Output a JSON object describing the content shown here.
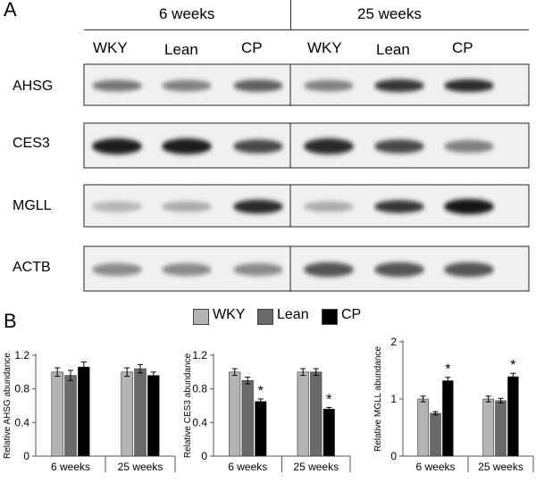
{
  "panel_a": {
    "letter": "A",
    "time_groups": [
      "6 weeks",
      "25 weeks"
    ],
    "lanes": [
      "WKY",
      "Lean",
      "CP",
      "WKY",
      "Lean",
      "CP"
    ],
    "blots": [
      {
        "protein": "AHSG",
        "intensity": [
          0.55,
          0.5,
          0.65,
          0.5,
          0.85,
          0.9
        ],
        "thickness": [
          0.5,
          0.5,
          0.55,
          0.5,
          0.6,
          0.6
        ]
      },
      {
        "protein": "CES3",
        "intensity": [
          0.95,
          0.95,
          0.75,
          0.9,
          0.75,
          0.5
        ],
        "thickness": [
          0.85,
          0.85,
          0.7,
          0.85,
          0.7,
          0.6
        ]
      },
      {
        "protein": "MGLL",
        "intensity": [
          0.25,
          0.3,
          0.9,
          0.3,
          0.85,
          1.0
        ],
        "thickness": [
          0.45,
          0.45,
          0.7,
          0.45,
          0.6,
          0.8
        ]
      },
      {
        "protein": "ACTB",
        "intensity": [
          0.45,
          0.45,
          0.45,
          0.7,
          0.7,
          0.7
        ],
        "thickness": [
          0.6,
          0.6,
          0.6,
          0.75,
          0.75,
          0.75
        ]
      }
    ]
  },
  "panel_b": {
    "letter": "B",
    "legend": [
      {
        "label": "WKY",
        "color": "#b4b4b4"
      },
      {
        "label": "Lean",
        "color": "#6a6a6a"
      },
      {
        "label": "CP",
        "color": "#000000"
      }
    ]
  },
  "chart_data": [
    {
      "type": "bar",
      "categories": [
        "6 weeks",
        "25 weeks"
      ],
      "series": [
        {
          "name": "WKY",
          "values": [
            1.0,
            1.0
          ],
          "errors": [
            0.05,
            0.05
          ],
          "color": "#b4b4b4"
        },
        {
          "name": "Lean",
          "values": [
            0.96,
            1.04
          ],
          "errors": [
            0.06,
            0.05
          ],
          "color": "#6a6a6a"
        },
        {
          "name": "CP",
          "values": [
            1.06,
            0.96
          ],
          "errors": [
            0.06,
            0.04
          ],
          "color": "#000000"
        }
      ],
      "significance": [
        [
          false,
          false,
          false
        ],
        [
          false,
          false,
          false
        ]
      ],
      "ylabel": "Relative AHSG  abundance",
      "ylim": [
        0,
        1.2
      ],
      "yticks": [
        "0",
        "0.4",
        "0.8",
        "1.2"
      ],
      "ytick_values": [
        0,
        0.4,
        0.8,
        1.2
      ]
    },
    {
      "type": "bar",
      "categories": [
        "6 weeks",
        "25 weeks"
      ],
      "series": [
        {
          "name": "WKY",
          "values": [
            1.0,
            1.0
          ],
          "errors": [
            0.04,
            0.04
          ],
          "color": "#b4b4b4"
        },
        {
          "name": "Lean",
          "values": [
            0.9,
            1.0
          ],
          "errors": [
            0.04,
            0.04
          ],
          "color": "#6a6a6a"
        },
        {
          "name": "CP",
          "values": [
            0.65,
            0.56
          ],
          "errors": [
            0.03,
            0.02
          ],
          "color": "#000000"
        }
      ],
      "significance": [
        [
          false,
          false,
          true
        ],
        [
          false,
          false,
          true
        ]
      ],
      "significance_marker": "*",
      "ylabel": "Relative CES3  abundance",
      "ylim": [
        0,
        1.2
      ],
      "yticks": [
        "0",
        "0.4",
        "0.8",
        "1.2"
      ],
      "ytick_values": [
        0,
        0.4,
        0.8,
        1.2
      ]
    },
    {
      "type": "bar",
      "categories": [
        "6 weeks",
        "25 weeks"
      ],
      "series": [
        {
          "name": "WKY",
          "values": [
            1.0,
            1.0
          ],
          "errors": [
            0.05,
            0.05
          ],
          "color": "#b4b4b4"
        },
        {
          "name": "Lean",
          "values": [
            0.75,
            0.97
          ],
          "errors": [
            0.03,
            0.04
          ],
          "color": "#6a6a6a"
        },
        {
          "name": "CP",
          "values": [
            1.32,
            1.39
          ],
          "errors": [
            0.06,
            0.06
          ],
          "color": "#000000"
        }
      ],
      "significance": [
        [
          false,
          false,
          true
        ],
        [
          false,
          false,
          true
        ]
      ],
      "significance_marker": "*",
      "ylabel": "Relative MGLL  abundance",
      "ylim": [
        0,
        2
      ],
      "yticks": [
        "0",
        "1",
        "2"
      ],
      "ytick_values": [
        0,
        1,
        2
      ]
    }
  ]
}
